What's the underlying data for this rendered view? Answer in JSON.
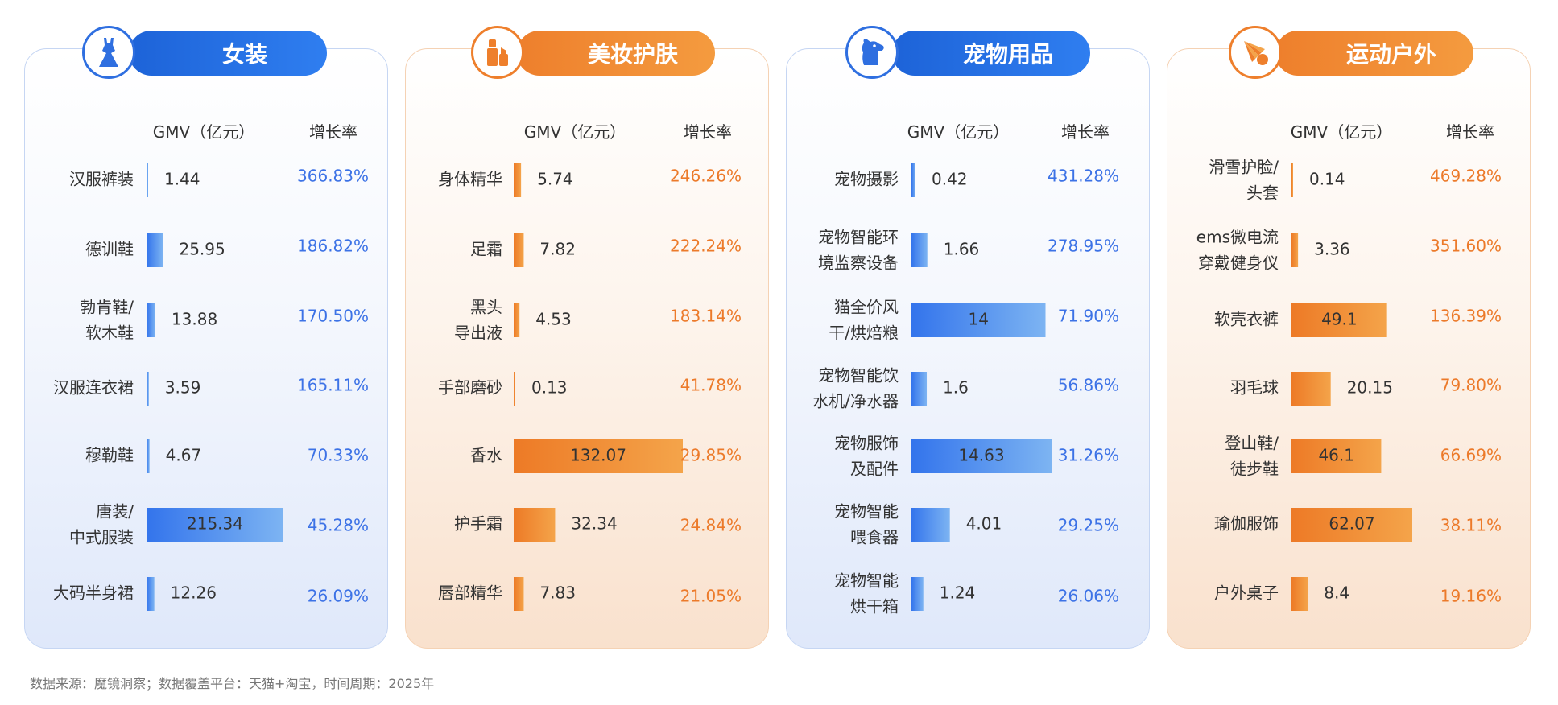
{
  "footer": "数据来源：魔镜洞察；数据覆盖平台：天猫+淘宝，时间周期：2025年",
  "colors": {
    "blue_bar_start": "#3374ec",
    "blue_bar_end": "#7db4f2",
    "blue_text": "#3c72e6",
    "orange_bar_start": "#ed7a26",
    "orange_bar_end": "#f4a44a",
    "orange_text": "#ec7a2a"
  },
  "chart_data": [
    {
      "type": "bar",
      "title": "女装",
      "icon": "dress-icon",
      "theme": "blue",
      "headers": {
        "gmv": "GMV（亿元）",
        "growth": "增长率"
      },
      "categories": [
        [
          "汉服裤装"
        ],
        [
          "德训鞋"
        ],
        [
          "勃肯鞋/",
          "软木鞋"
        ],
        [
          "汉服连衣裙"
        ],
        [
          "穆勒鞋"
        ],
        [
          "唐装/",
          "中式服装"
        ],
        [
          "大码半身裙"
        ]
      ],
      "values": [
        1.44,
        25.95,
        13.88,
        3.59,
        4.67,
        215.34,
        12.26
      ],
      "growth": [
        "366.83%",
        "186.82%",
        "170.50%",
        "165.11%",
        "70.33%",
        "45.28%",
        "26.09%"
      ],
      "xlim": [
        0,
        215.34
      ]
    },
    {
      "type": "bar",
      "title": "美妆护肤",
      "icon": "cosmetics-icon",
      "theme": "orange",
      "headers": {
        "gmv": "GMV（亿元）",
        "growth": "增长率"
      },
      "categories": [
        [
          "身体精华"
        ],
        [
          "足霜"
        ],
        [
          "黑头",
          "导出液"
        ],
        [
          "手部磨砂"
        ],
        [
          "香水"
        ],
        [
          "护手霜"
        ],
        [
          "唇部精华"
        ]
      ],
      "values": [
        5.74,
        7.82,
        4.53,
        0.13,
        132.07,
        32.34,
        7.83
      ],
      "growth": [
        "246.26%",
        "222.24%",
        "183.14%",
        "41.78%",
        "29.85%",
        "24.84%",
        "21.05%"
      ],
      "xlim": [
        0,
        132.07
      ]
    },
    {
      "type": "bar",
      "title": "宠物用品",
      "icon": "dog-icon",
      "theme": "blue",
      "headers": {
        "gmv": "GMV（亿元）",
        "growth": "增长率"
      },
      "categories": [
        [
          "宠物摄影"
        ],
        [
          "宠物智能环",
          "境监察设备"
        ],
        [
          "猫全价风",
          "干/烘焙粮"
        ],
        [
          "宠物智能饮",
          "水机/净水器"
        ],
        [
          "宠物服饰",
          "及配件"
        ],
        [
          "宠物智能",
          "喂食器"
        ],
        [
          "宠物智能",
          "烘干箱"
        ]
      ],
      "values": [
        0.42,
        1.66,
        14,
        1.6,
        14.63,
        4.01,
        1.24
      ],
      "growth": [
        "431.28%",
        "278.95%",
        "71.90%",
        "56.86%",
        "31.26%",
        "29.25%",
        "26.06%"
      ],
      "xlim": [
        0,
        14.63
      ]
    },
    {
      "type": "bar",
      "title": "运动户外",
      "icon": "shuttlecock-icon",
      "theme": "orange",
      "headers": {
        "gmv": "GMV（亿元）",
        "growth": "增长率"
      },
      "categories": [
        [
          "滑雪护脸/",
          "头套"
        ],
        [
          "ems微电流",
          "穿戴健身仪"
        ],
        [
          "软壳衣裤"
        ],
        [
          "羽毛球"
        ],
        [
          "登山鞋/",
          "徒步鞋"
        ],
        [
          "瑜伽服饰"
        ],
        [
          "户外桌子"
        ]
      ],
      "values": [
        0.14,
        3.36,
        49.1,
        20.15,
        46.1,
        62.07,
        8.4
      ],
      "growth": [
        "469.28%",
        "351.60%",
        "136.39%",
        "79.80%",
        "66.69%",
        "38.11%",
        "19.16%"
      ],
      "xlim": [
        0,
        62.07
      ]
    }
  ]
}
